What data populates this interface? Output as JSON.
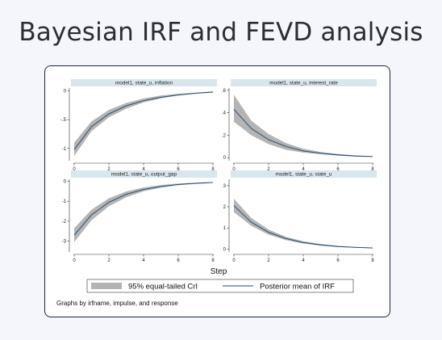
{
  "page": {
    "title": "Bayesian IRF and FEVD analysis"
  },
  "colors": {
    "band": "#b4b4b4",
    "line": "#1a476f",
    "strip": "#d8e6ee",
    "card_border": "#1f2340"
  },
  "chart_data": {
    "type": "line",
    "xlabel": "Step",
    "note": "Graphs by irfname, impulse, and response",
    "legend": {
      "band_label": "95% equal-tailed CrI",
      "line_label": "Posterior mean of IRF",
      "placement": "bottom"
    },
    "xticks": [
      0,
      2,
      4,
      6,
      8
    ],
    "grid": false,
    "panels": [
      {
        "title": "model1, state_u, inflation",
        "ylim": [
          -1.2,
          0.05
        ],
        "yticks": [
          0,
          -0.5,
          -1
        ],
        "ytick_labels": [
          "0",
          "-.5",
          "-1"
        ],
        "x": [
          0,
          1,
          2,
          3,
          4,
          5,
          6,
          7,
          8
        ],
        "mean": [
          -1.02,
          -0.62,
          -0.4,
          -0.26,
          -0.17,
          -0.11,
          -0.07,
          -0.04,
          -0.02
        ],
        "lower": [
          -1.13,
          -0.7,
          -0.46,
          -0.31,
          -0.2,
          -0.13,
          -0.08,
          -0.05,
          -0.03
        ],
        "upper": [
          -0.9,
          -0.53,
          -0.33,
          -0.21,
          -0.13,
          -0.08,
          -0.05,
          -0.03,
          -0.01
        ]
      },
      {
        "title": "model1, state_u, interest_rate",
        "ylim": [
          -0.02,
          0.62
        ],
        "yticks": [
          0,
          0.2,
          0.4,
          0.6
        ],
        "ytick_labels": [
          "0",
          ".2",
          ".4",
          ".6"
        ],
        "x": [
          0,
          1,
          2,
          3,
          4,
          5,
          6,
          7,
          8
        ],
        "mean": [
          0.43,
          0.26,
          0.16,
          0.1,
          0.06,
          0.04,
          0.025,
          0.015,
          0.01
        ],
        "lower": [
          0.32,
          0.2,
          0.12,
          0.07,
          0.045,
          0.03,
          0.018,
          0.01,
          0.006
        ],
        "upper": [
          0.56,
          0.33,
          0.21,
          0.13,
          0.08,
          0.05,
          0.032,
          0.02,
          0.013
        ]
      },
      {
        "title": "model1, state_u, output_gap",
        "ylim": [
          -3.5,
          0.1
        ],
        "yticks": [
          0,
          -1,
          -2,
          -3
        ],
        "ytick_labels": [
          "0",
          "-1",
          "-2",
          "-3"
        ],
        "x": [
          0,
          1,
          2,
          3,
          4,
          5,
          6,
          7,
          8
        ],
        "mean": [
          -2.7,
          -1.68,
          -1.05,
          -0.65,
          -0.41,
          -0.26,
          -0.16,
          -0.1,
          -0.06
        ],
        "lower": [
          -3.05,
          -1.95,
          -1.25,
          -0.8,
          -0.5,
          -0.32,
          -0.2,
          -0.13,
          -0.08
        ],
        "upper": [
          -2.35,
          -1.42,
          -0.85,
          -0.51,
          -0.31,
          -0.19,
          -0.11,
          -0.07,
          -0.04
        ]
      },
      {
        "title": "model1, state_u, state_u",
        "ylim": [
          -0.1,
          3.3
        ],
        "yticks": [
          0,
          1,
          2,
          3
        ],
        "ytick_labels": [
          "0",
          "1",
          "2",
          "3"
        ],
        "x": [
          0,
          1,
          2,
          3,
          4,
          5,
          6,
          7,
          8
        ],
        "mean": [
          2.05,
          1.27,
          0.79,
          0.5,
          0.31,
          0.2,
          0.12,
          0.08,
          0.05
        ],
        "lower": [
          1.75,
          1.1,
          0.68,
          0.42,
          0.26,
          0.16,
          0.1,
          0.06,
          0.04
        ],
        "upper": [
          2.38,
          1.47,
          0.92,
          0.58,
          0.37,
          0.24,
          0.15,
          0.1,
          0.07
        ]
      }
    ]
  }
}
